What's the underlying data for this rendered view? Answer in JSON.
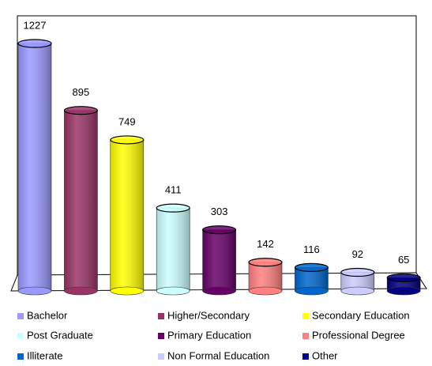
{
  "chart_data": {
    "type": "bar3d",
    "categories": [
      "Bachelor",
      "Higher/Secondary",
      "Secondary Education",
      "Post Graduate",
      "Primary Education",
      "Professional Degree",
      "Illiterate",
      "Non Formal Education",
      "Other"
    ],
    "values": [
      1227,
      895,
      749,
      411,
      303,
      142,
      116,
      92,
      65
    ],
    "colors": [
      "#9999ff",
      "#993366",
      "#ffff00",
      "#ccffff",
      "#660066",
      "#ff8080",
      "#0066cc",
      "#ccccff",
      "#000080"
    ],
    "legend": "bottom"
  }
}
